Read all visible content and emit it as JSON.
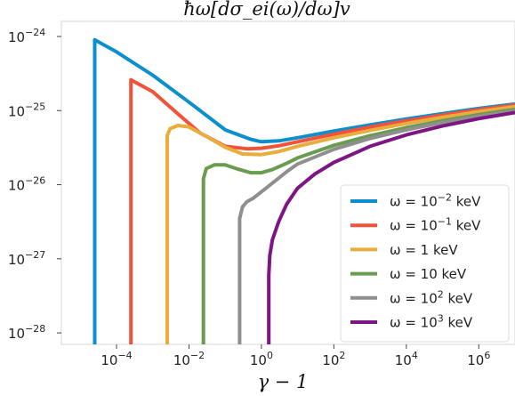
{
  "chart_data": {
    "type": "line",
    "title": "ħω[dσ_ei(ω)/dω]v",
    "xlabel": "γ − 1",
    "ylabel": "",
    "xscale": "log",
    "yscale": "log",
    "xlim": [
      3e-06,
      10000000.0
    ],
    "ylim": [
      7e-29,
      1.6e-24
    ],
    "x_ticks": [
      {
        "value": 0.0001,
        "base": "10",
        "exp": "−4"
      },
      {
        "value": 0.01,
        "base": "10",
        "exp": "−2"
      },
      {
        "value": 1,
        "base": "10",
        "exp": "0"
      },
      {
        "value": 100.0,
        "base": "10",
        "exp": "2"
      },
      {
        "value": 10000.0,
        "base": "10",
        "exp": "4"
      },
      {
        "value": 1000000.0,
        "base": "10",
        "exp": "6"
      }
    ],
    "y_ticks": [
      {
        "value": 1e-24,
        "base": "10",
        "exp": "−24"
      },
      {
        "value": 1e-25,
        "base": "10",
        "exp": "−25"
      },
      {
        "value": 1e-26,
        "base": "10",
        "exp": "−26"
      },
      {
        "value": 1e-27,
        "base": "10",
        "exp": "−27"
      },
      {
        "value": 1e-28,
        "base": "10",
        "exp": "−28"
      }
    ],
    "grid": false,
    "legend_position": "lower-right",
    "series": [
      {
        "name": "ω = 10^−2 keV",
        "legend_pre": "ω = 10",
        "legend_sup": "−2",
        "legend_post": " keV",
        "color": "#0C8FCF",
        "x": [
          2.5e-05,
          2.5e-05,
          0.0001,
          0.001,
          0.01,
          0.1,
          0.5,
          1,
          3,
          10,
          100,
          1000.0,
          10000.0,
          100000.0,
          1000000.0,
          10000000.0
        ],
        "y": [
          7e-29,
          9e-25,
          6.2e-25,
          3e-25,
          1.3e-25,
          5.5e-26,
          4.1e-26,
          3.8e-26,
          3.9e-26,
          4.3e-26,
          5.3e-26,
          6.4e-26,
          7.7e-26,
          9.1e-26,
          1.07e-25,
          1.23e-25
        ]
      },
      {
        "name": "ω = 10^−1 keV",
        "legend_pre": "ω = 10",
        "legend_sup": "−1",
        "legend_post": " keV",
        "color": "#F4513A",
        "x": [
          0.00025,
          0.00025,
          0.001,
          0.005,
          0.02,
          0.1,
          0.4,
          1,
          3,
          10,
          100,
          1000.0,
          10000.0,
          100000.0,
          1000000.0,
          10000000.0
        ],
        "y": [
          7e-29,
          2.6e-25,
          1.8e-25,
          9e-26,
          5e-26,
          3.3e-26,
          3.05e-26,
          3.1e-26,
          3.35e-26,
          3.8e-26,
          4.8e-26,
          6e-26,
          7.3e-26,
          8.7e-26,
          1.03e-25,
          1.19e-25
        ]
      },
      {
        "name": "ω = 1 keV",
        "legend_pre": "ω = 1",
        "legend_sup": "",
        "legend_post": " keV",
        "color": "#E8AD3D",
        "x": [
          0.0025,
          0.0025,
          0.003,
          0.005,
          0.01,
          0.03,
          0.1,
          0.3,
          1,
          3,
          10,
          100,
          1000.0,
          10000.0,
          100000.0,
          1000000.0,
          10000000.0
        ],
        "y": [
          7e-29,
          4.6e-26,
          5.7e-26,
          6.3e-26,
          6e-26,
          4.5e-26,
          3.2e-26,
          2.6e-26,
          2.55e-26,
          2.8e-26,
          3.3e-26,
          4.3e-26,
          5.4e-26,
          6.7e-26,
          8.1e-26,
          9.7e-26,
          1.13e-25
        ]
      },
      {
        "name": "ω = 10 keV",
        "legend_pre": "ω = 10",
        "legend_sup": "",
        "legend_post": " keV",
        "color": "#6A9C4F",
        "x": [
          0.025,
          0.025,
          0.03,
          0.05,
          0.1,
          0.2,
          0.5,
          1,
          2,
          5,
          10,
          100,
          1000.0,
          10000.0,
          100000.0,
          1000000.0,
          10000000.0
        ],
        "y": [
          7e-29,
          1.2e-26,
          1.65e-26,
          1.85e-26,
          1.85e-26,
          1.65e-26,
          1.45e-26,
          1.45e-26,
          1.6e-26,
          1.95e-26,
          2.3e-26,
          3.4e-26,
          4.6e-26,
          5.9e-26,
          7.3e-26,
          8.8e-26,
          1.04e-25
        ]
      },
      {
        "name": "ω = 10^2 keV",
        "legend_pre": "ω = 10",
        "legend_sup": "2",
        "legend_post": " keV",
        "color": "#8F8F8F",
        "x": [
          0.25,
          0.25,
          0.3,
          0.4,
          0.6,
          1,
          2,
          5,
          10,
          100,
          1000.0,
          10000.0,
          100000.0,
          1000000.0,
          10000000.0
        ],
        "y": [
          7e-29,
          3.5e-27,
          5e-27,
          5.9e-27,
          6.6e-27,
          8e-27,
          1.05e-26,
          1.5e-26,
          1.9e-26,
          3e-26,
          4.2e-26,
          5.5e-26,
          6.9e-26,
          8.4e-26,
          9.9e-26
        ]
      },
      {
        "name": "ω = 10^3 keV",
        "legend_pre": "ω = 10",
        "legend_sup": "3",
        "legend_post": " keV",
        "color": "#7D1684",
        "x": [
          1.6,
          1.6,
          1.7,
          2,
          3,
          5,
          10,
          30,
          100,
          1000.0,
          10000.0,
          100000.0,
          1000000.0,
          10000000.0
        ],
        "y": [
          7e-29,
          6e-28,
          1.1e-27,
          1.8e-27,
          3.2e-27,
          5.5e-27,
          9e-27,
          1.4e-26,
          2e-26,
          3.3e-26,
          4.7e-26,
          6.2e-26,
          7.8e-26,
          9.4e-26
        ]
      }
    ]
  }
}
